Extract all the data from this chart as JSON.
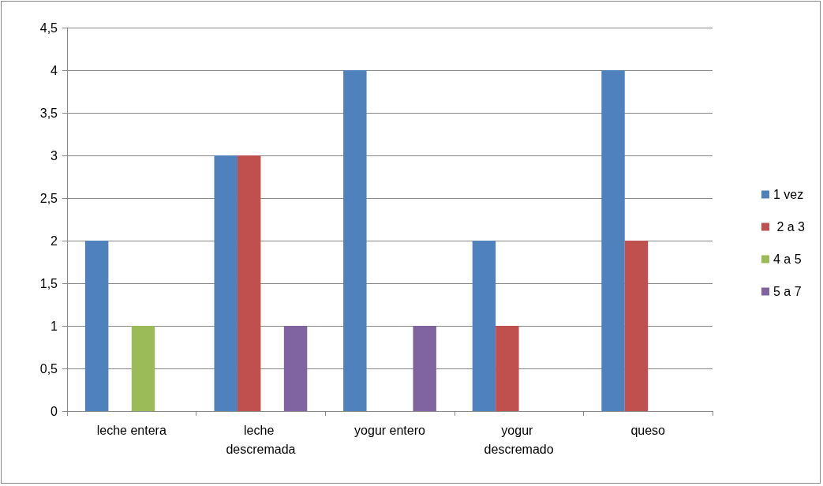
{
  "chart_data": {
    "type": "bar",
    "categories": [
      "leche entera",
      "leche descremada",
      "yogur entero",
      "yogur descremado",
      "queso"
    ],
    "series": [
      {
        "name": "1 vez",
        "color": "#4f81bd",
        "values": [
          2,
          3,
          4,
          2,
          4
        ]
      },
      {
        "name": " 2 a 3",
        "color": "#c0504d",
        "values": [
          null,
          3,
          null,
          1,
          2
        ]
      },
      {
        "name": "4 a 5",
        "color": "#9bbb59",
        "values": [
          1,
          null,
          null,
          null,
          null
        ]
      },
      {
        "name": "5 a 7",
        "color": "#8064a2",
        "values": [
          null,
          1,
          1,
          null,
          null
        ]
      }
    ],
    "ylim": [
      0,
      4.5
    ],
    "yticks": [
      0,
      {
        "value": 0.5,
        "label": "0,5"
      },
      1,
      {
        "value": 1.5,
        "label": "1,5"
      },
      2,
      {
        "value": 2.5,
        "label": "2,5"
      },
      3,
      {
        "value": 3.5,
        "label": "3,5"
      },
      4,
      {
        "value": 4.5,
        "label": "4,5"
      }
    ],
    "grid": "y",
    "legend": "right"
  }
}
